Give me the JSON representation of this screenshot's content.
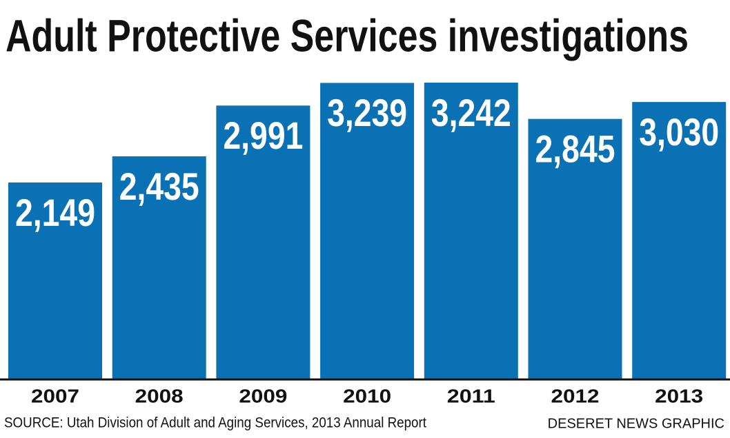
{
  "chart_data": {
    "type": "bar",
    "title": "Adult Protective Services investigations",
    "categories": [
      "2007",
      "2008",
      "2009",
      "2010",
      "2011",
      "2012",
      "2013"
    ],
    "values": [
      2149,
      2435,
      2991,
      3239,
      3242,
      2845,
      3030
    ],
    "value_labels": [
      "2,149",
      "2,435",
      "2,991",
      "3,239",
      "3,242",
      "2,845",
      "3,030"
    ],
    "color": "#0a72b4",
    "source": "SOURCE: Utah Division of Adult and Aging Services, 2013 Annual Report",
    "credit": "DESERET NEWS GRAPHIC"
  }
}
